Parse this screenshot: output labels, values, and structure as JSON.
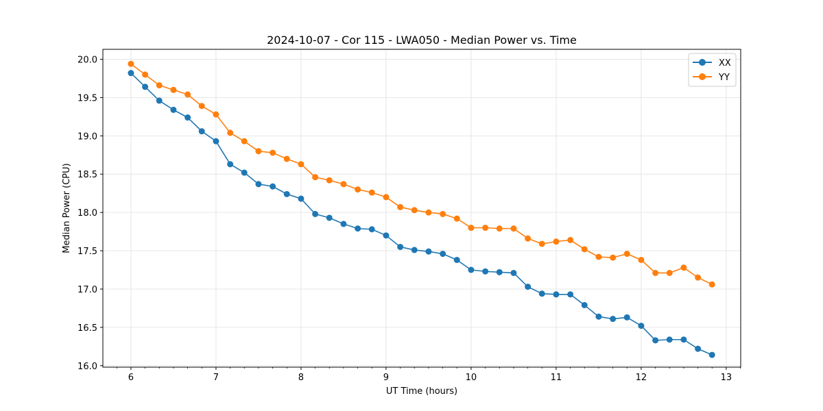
{
  "chart_data": {
    "type": "line",
    "title": "2024-10-07 - Cor 115 - LWA050 - Median Power vs. Time",
    "xlabel": "UT Time (hours)",
    "ylabel": "Median Power (CPU)",
    "xlim": [
      5.67,
      13.17
    ],
    "ylim": [
      15.98,
      20.13
    ],
    "xticks": [
      6,
      7,
      8,
      9,
      10,
      11,
      12,
      13
    ],
    "yticks": [
      16.0,
      16.5,
      17.0,
      17.5,
      18.0,
      18.5,
      19.0,
      19.5,
      20.0
    ],
    "grid": true,
    "legend_position": "top-right",
    "x": [
      6.0,
      6.167,
      6.333,
      6.5,
      6.667,
      6.833,
      7.0,
      7.167,
      7.333,
      7.5,
      7.667,
      7.833,
      8.0,
      8.167,
      8.333,
      8.5,
      8.667,
      8.833,
      9.0,
      9.167,
      9.333,
      9.5,
      9.667,
      9.833,
      10.0,
      10.167,
      10.333,
      10.5,
      10.667,
      10.833,
      11.0,
      11.167,
      11.333,
      11.5,
      11.667,
      11.833,
      12.0,
      12.167,
      12.333,
      12.5,
      12.667,
      12.833
    ],
    "series": [
      {
        "name": "XX",
        "color": "#1f77b4",
        "values": [
          19.82,
          19.64,
          19.46,
          19.34,
          19.24,
          19.06,
          18.93,
          18.63,
          18.52,
          18.37,
          18.34,
          18.24,
          18.18,
          17.98,
          17.93,
          17.85,
          17.79,
          17.78,
          17.7,
          17.55,
          17.51,
          17.49,
          17.46,
          17.38,
          17.25,
          17.23,
          17.22,
          17.21,
          17.03,
          16.94,
          16.93,
          16.93,
          16.79,
          16.64,
          16.61,
          16.63,
          16.52,
          16.33,
          16.34,
          16.34,
          16.22,
          16.14
        ]
      },
      {
        "name": "YY",
        "color": "#ff7f0e",
        "values": [
          19.94,
          19.8,
          19.66,
          19.6,
          19.54,
          19.39,
          19.28,
          19.04,
          18.93,
          18.8,
          18.78,
          18.7,
          18.63,
          18.46,
          18.42,
          18.37,
          18.3,
          18.26,
          18.2,
          18.07,
          18.03,
          18.0,
          17.98,
          17.92,
          17.8,
          17.8,
          17.79,
          17.79,
          17.66,
          17.59,
          17.62,
          17.64,
          17.52,
          17.42,
          17.41,
          17.46,
          17.38,
          17.21,
          17.21,
          17.28,
          17.15,
          17.06
        ]
      }
    ]
  }
}
